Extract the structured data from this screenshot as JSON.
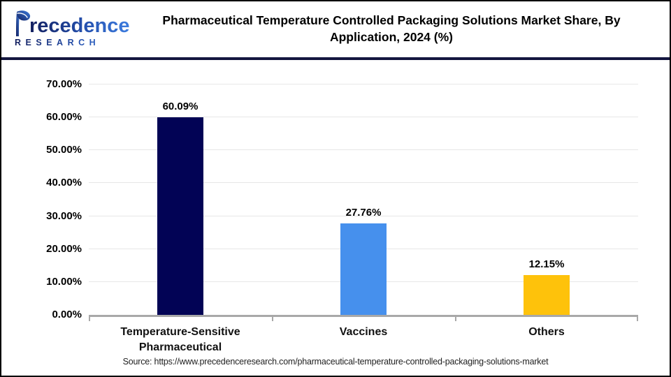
{
  "header": {
    "logo": {
      "name_full": "Precedence",
      "name_rest": "recedence",
      "subtitle": "RESEARCH"
    },
    "title": "Pharmaceutical Temperature Controlled Packaging Solutions Market Share, By Application, 2024 (%)",
    "title_lines": [
      "Pharmaceutical Temperature Controlled Packaging Solutions Market Share, By",
      "Application, 2024 (%)"
    ]
  },
  "chart_data": {
    "type": "bar",
    "title": "Pharmaceutical Temperature Controlled Packaging Solutions Market Share, By Application, 2024 (%)",
    "categories": [
      "Temperature-Sensitive Pharmaceutical",
      "Vaccines",
      "Others"
    ],
    "values": [
      60.09,
      27.76,
      12.15
    ],
    "value_labels": [
      "60.09%",
      "27.76%",
      "12.15%"
    ],
    "bar_colors": [
      "#020355",
      "#4690ED",
      "#FEC20B"
    ],
    "xlabel": "",
    "ylabel": "",
    "ylim": [
      0,
      70
    ],
    "ytick_values": [
      0,
      10,
      20,
      30,
      40,
      50,
      60,
      70
    ],
    "ytick_labels": [
      "0.00%",
      "10.00%",
      "20.00%",
      "30.00%",
      "40.00%",
      "50.00%",
      "60.00%",
      "70.00%"
    ],
    "grid": true,
    "legend": false
  },
  "source": "Source: https://www.precedenceresearch.com/pharmaceutical-temperature-controlled-packaging-solutions-market",
  "colors": {
    "grid": "#E7E7E7",
    "axis": "#A8A8A8",
    "divider": "#14173F",
    "logo_dark": "#131F5E",
    "logo_blue": "#3D7DE0"
  }
}
